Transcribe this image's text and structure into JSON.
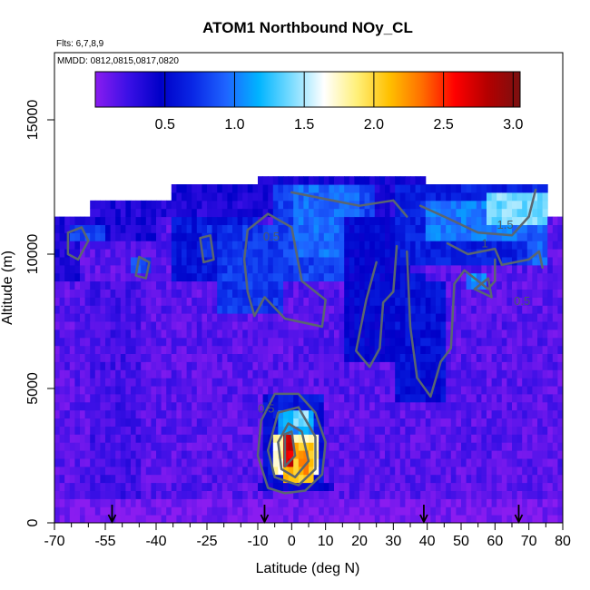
{
  "chart_data": {
    "type": "heatmap",
    "title": "ATOM1 Northbound NOy_CL",
    "notes": [
      "Flts: 6,7,8,9",
      "MMDD: 0812,0815,0817,0820"
    ],
    "xlabel": "Latitude (deg N)",
    "ylabel": "Altitude (m)",
    "xlim": [
      -70,
      80
    ],
    "ylim": [
      0,
      17500
    ],
    "x_tick_labels": [
      "-70",
      "-55",
      "-40",
      "-25",
      "-10",
      "0",
      "10",
      "20",
      "30",
      "40",
      "50",
      "60",
      "70",
      "80"
    ],
    "x_ticks": [
      -70,
      -55,
      -40,
      -25,
      -10,
      0,
      10,
      20,
      30,
      40,
      50,
      60,
      70,
      80
    ],
    "x_minor_ticks": [
      -65,
      -60,
      -50,
      -45,
      -35,
      -30,
      -20,
      -15,
      -5,
      5,
      15,
      25,
      35,
      45,
      55,
      65,
      75
    ],
    "y_tick_labels": [
      "0",
      "5000",
      "10000",
      "15000"
    ],
    "y_ticks": [
      0,
      5000,
      10000,
      15000
    ],
    "colorbar": {
      "range": [
        0,
        3.05
      ],
      "tick_labels": [
        "0.5",
        "1.0",
        "1.5",
        "2.0",
        "2.5",
        "3.0"
      ],
      "ticks": [
        0.5,
        1.0,
        1.5,
        2.0,
        2.5,
        3.0
      ],
      "colors": [
        "#8a1cf0",
        "#3b10e6",
        "#0000c8",
        "#0a28e6",
        "#1e64ff",
        "#00b4ff",
        "#7adcff",
        "#ffffff",
        "#fff07a",
        "#ffc000",
        "#ff6e00",
        "#ff0000",
        "#b40000",
        "#7a1010"
      ]
    },
    "contour_labels": [
      {
        "text": "0.5",
        "x": -6,
        "y": 10500
      },
      {
        "text": "1.5",
        "x": 63,
        "y": 10950
      },
      {
        "text": "1",
        "x": 57,
        "y": 10250
      },
      {
        "text": "0.5",
        "x": 68,
        "y": 8100
      },
      {
        "text": "0.5",
        "x": -7.5,
        "y": 4100
      }
    ],
    "flight_markers_lat": [
      -53,
      -8,
      39,
      67
    ],
    "regions": [
      {
        "x0": -70,
        "x1": 80,
        "y0": 0,
        "y1": 11500,
        "v": 0.15
      },
      {
        "x0": -69,
        "x1": 79,
        "y0": 100,
        "y1": 1000,
        "v": 0.05
      },
      {
        "x0": -60,
        "x1": -45,
        "y0": 1000,
        "y1": 9000,
        "v": 0.22
      },
      {
        "x0": -70,
        "x1": -62,
        "y0": 9000,
        "y1": 11500,
        "v": 0.35
      },
      {
        "x0": -65,
        "x1": -40,
        "y0": 10500,
        "y1": 11500,
        "v": 0.38
      },
      {
        "x0": -60,
        "x1": 75,
        "y0": 11500,
        "y1": 12000,
        "v": 0.35
      },
      {
        "x0": -35,
        "x1": 75,
        "y0": 12000,
        "y1": 12500,
        "v": 0.38
      },
      {
        "x0": -10,
        "x1": 40,
        "y0": 12500,
        "y1": 12900,
        "v": 0.42
      },
      {
        "x0": -35,
        "x1": -10,
        "y0": 9000,
        "y1": 11500,
        "v": 0.6
      },
      {
        "x0": -22,
        "x1": -2,
        "y0": 7800,
        "y1": 11000,
        "v": 0.75
      },
      {
        "x0": -5,
        "x1": 25,
        "y0": 9000,
        "y1": 12500,
        "v": 0.8
      },
      {
        "x0": 0,
        "x1": 20,
        "y0": 10000,
        "y1": 12500,
        "v": 0.95
      },
      {
        "x0": 15,
        "x1": 35,
        "y0": 6000,
        "y1": 11500,
        "v": 0.5
      },
      {
        "x0": 30,
        "x1": 45,
        "y0": 4500,
        "y1": 9000,
        "v": 0.55
      },
      {
        "x0": 30,
        "x1": 75,
        "y0": 9500,
        "y1": 12500,
        "v": 0.65
      },
      {
        "x0": 40,
        "x1": 72,
        "y0": 10500,
        "y1": 12000,
        "v": 1.0
      },
      {
        "x0": 58,
        "x1": 76,
        "y0": 11000,
        "y1": 12300,
        "v": 1.4
      },
      {
        "x0": 70,
        "x1": 76,
        "y0": 9500,
        "y1": 11000,
        "v": 0.9
      },
      {
        "x0": -48,
        "x1": -42,
        "y0": 9300,
        "y1": 9900,
        "v": 0.85
      },
      {
        "x0": -27,
        "x1": -23,
        "y0": 10000,
        "y1": 11000,
        "v": 0.75
      },
      {
        "x0": -65,
        "x1": -55,
        "y0": 10400,
        "y1": 11200,
        "v": 0.8
      },
      {
        "x0": 35,
        "x1": 40,
        "y0": 7200,
        "y1": 9300,
        "v": 0.6
      },
      {
        "x0": 52,
        "x1": 58,
        "y0": 8700,
        "y1": 9300,
        "v": 1.05
      },
      {
        "x0": -8,
        "x1": 10,
        "y0": 1500,
        "y1": 4700,
        "v": 0.6
      },
      {
        "x0": -4,
        "x1": 7,
        "y0": 2000,
        "y1": 4200,
        "v": 1.1
      },
      {
        "x0": 1,
        "x1": 5,
        "y0": 3600,
        "y1": 4300,
        "v": 1.4
      },
      {
        "x0": -5,
        "x1": 8,
        "y0": 1700,
        "y1": 3400,
        "v": 1.75
      },
      {
        "x0": -3,
        "x1": 7,
        "y0": 1600,
        "y1": 2900,
        "v": 2.1
      },
      {
        "x0": -3,
        "x1": 0,
        "y0": 2000,
        "y1": 3300,
        "v": 2.7
      },
      {
        "x0": 2,
        "x1": 5,
        "y0": 1800,
        "y1": 2600,
        "v": 2.25
      },
      {
        "x0": -10,
        "x1": 12,
        "y0": 1200,
        "y1": 1600,
        "v": 0.45
      }
    ]
  }
}
